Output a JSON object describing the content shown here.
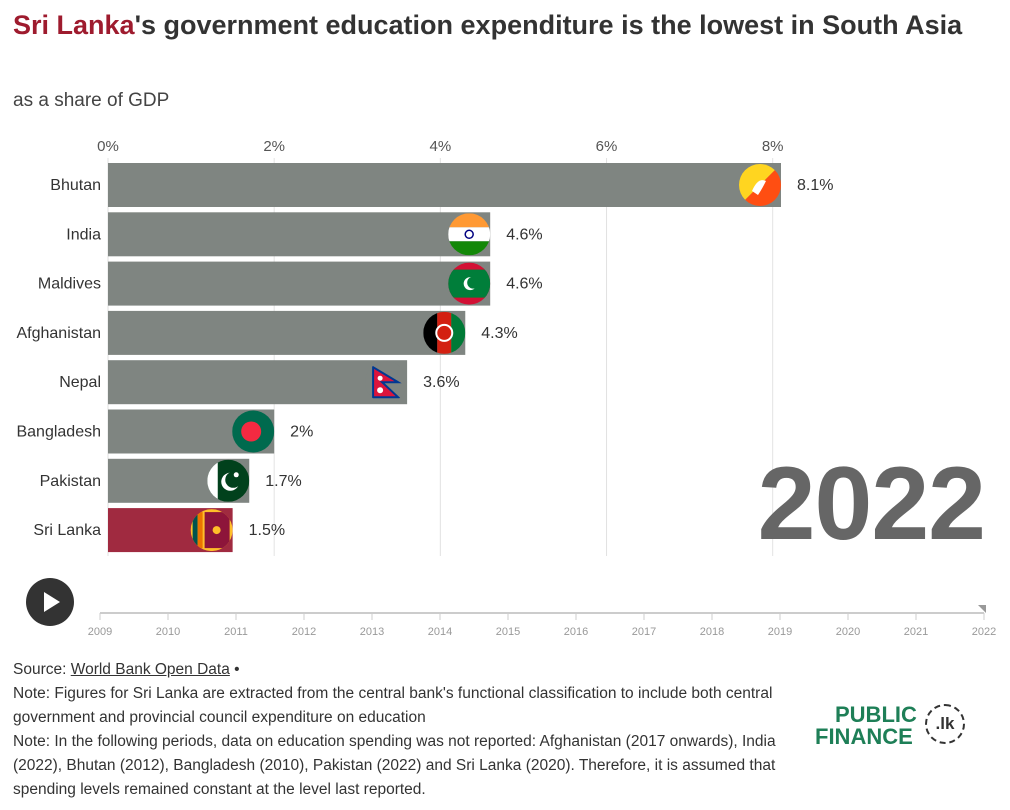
{
  "title": {
    "highlight": "Sri Lanka",
    "rest": "'s government education expenditure is the lowest in South Asia"
  },
  "subtitle": "as a share of GDP",
  "year": "2022",
  "colors": {
    "bar": "#7f8581",
    "highlight_bar": "#a02a40",
    "title_highlight": "#9e1b2e",
    "logo": "#1e7f57"
  },
  "chart_data": {
    "type": "bar",
    "orientation": "horizontal",
    "categories": [
      "Bhutan",
      "India",
      "Maldives",
      "Afghanistan",
      "Nepal",
      "Bangladesh",
      "Pakistan",
      "Sri Lanka"
    ],
    "values": [
      8.1,
      4.6,
      4.6,
      4.3,
      3.6,
      2,
      1.7,
      1.5
    ],
    "value_labels": [
      "8.1%",
      "4.6%",
      "4.6%",
      "4.3%",
      "3.6%",
      "2%",
      "1.7%",
      "1.5%"
    ],
    "flag_icons": [
      "bhutan-flag-icon",
      "india-flag-icon",
      "maldives-flag-icon",
      "afghanistan-flag-icon",
      "nepal-flag-icon",
      "bangladesh-flag-icon",
      "pakistan-flag-icon",
      "sri-lanka-flag-icon"
    ],
    "highlight_category": "Sri Lanka",
    "xlim": [
      0,
      8.1
    ],
    "x_ticks": [
      0,
      2,
      4,
      6,
      8
    ],
    "x_tick_labels": [
      "0%",
      "2%",
      "4%",
      "6%",
      "8%"
    ],
    "grid": true
  },
  "timeline": {
    "years": [
      "2009",
      "2010",
      "2011",
      "2012",
      "2013",
      "2014",
      "2015",
      "2016",
      "2017",
      "2018",
      "2019",
      "2020",
      "2021",
      "2022"
    ],
    "current": "2022"
  },
  "footer": {
    "source_label": "Source:",
    "source_link": "World Bank Open Data",
    "source_suffix": " •",
    "note1": "Note: Figures for Sri Lanka are extracted from the central bank's functional classification to include both central government and provincial council expenditure on education",
    "note2": "Note: In the following periods, data on education spending was not reported: Afghanistan (2017 onwards), India (2022), Bhutan (2012), Bangladesh (2010), Pakistan (2022) and Sri Lanka (2020). Therefore, it is assumed that spending levels remained constant at the level last reported."
  },
  "logo": {
    "line1": "PUBLIC",
    "line2": "FINANCE",
    "badge": ".lk"
  }
}
